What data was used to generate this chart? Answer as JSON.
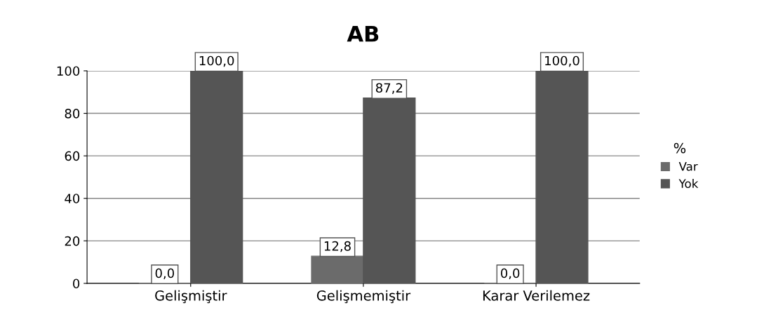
{
  "chart_data": {
    "type": "bar",
    "title": "AB",
    "legend_title": "%",
    "categories": [
      "Gelişmiştir",
      "Gelişmemiştir",
      "Karar Verilemez"
    ],
    "series": [
      {
        "name": "Var",
        "color": "#6b6b6b",
        "values": [
          0.0,
          12.8,
          0.0
        ],
        "value_labels": [
          "0,0",
          "12,8",
          "0,0"
        ]
      },
      {
        "name": "Yok",
        "color": "#555555",
        "values": [
          100.0,
          87.2,
          100.0
        ],
        "value_labels": [
          "100,0",
          "87,2",
          "100,0"
        ]
      }
    ],
    "ylim": [
      0,
      100
    ],
    "yticks": [
      0,
      20,
      40,
      60,
      80,
      100
    ],
    "grid": "y",
    "legend": "right"
  }
}
